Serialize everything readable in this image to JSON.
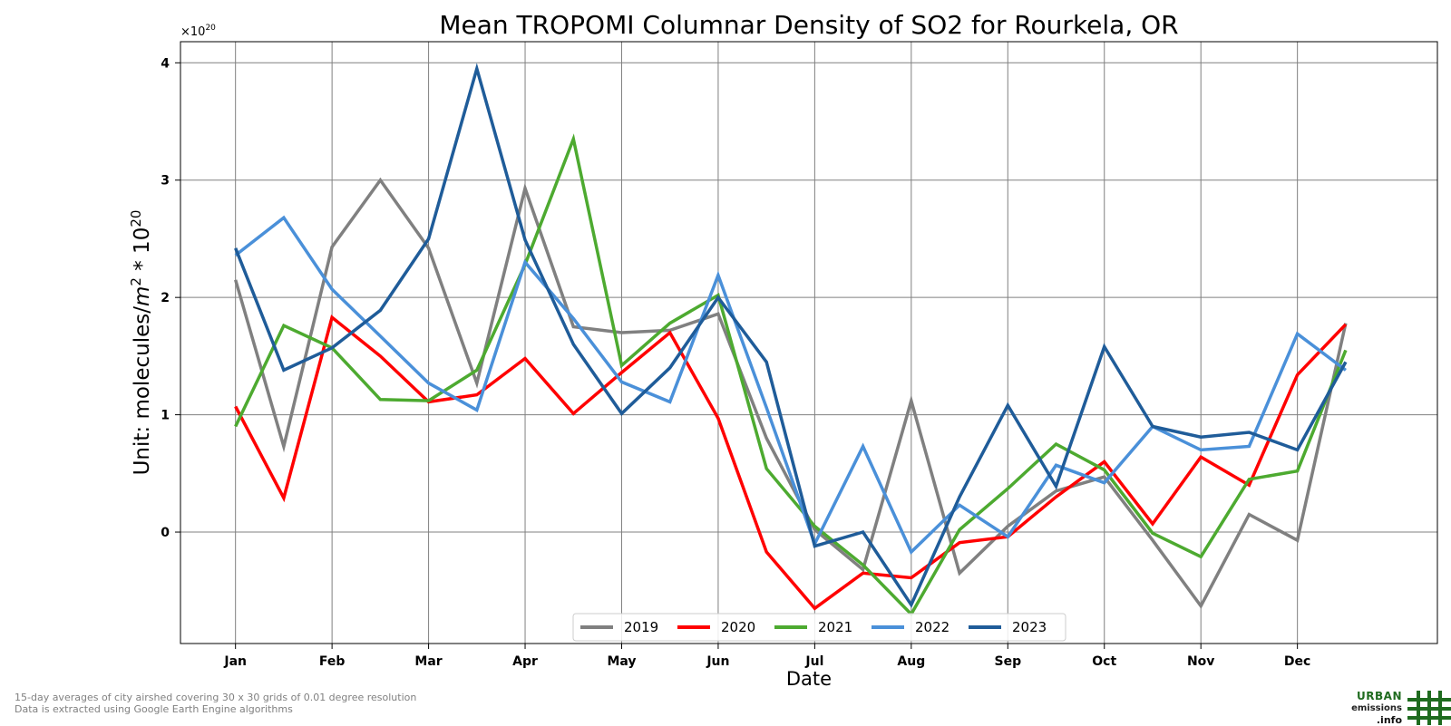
{
  "chart_data": {
    "type": "line",
    "title": "Mean TROPOMI Columnar Density of SO2 for Rourkela, OR",
    "xlabel": "Date",
    "ylabel_prefix": "Unit: molecules/",
    "ylabel_m": "m",
    "ylabel_exp2": "2",
    "ylabel_mid": " * 10",
    "ylabel_exp20": "20",
    "offset_base": "×10",
    "offset_exp": "20",
    "x_tick_labels": [
      "Jan",
      "Feb",
      "Mar",
      "Apr",
      "May",
      "Jun",
      "Jul",
      "Aug",
      "Sep",
      "Oct",
      "Nov",
      "Dec"
    ],
    "y_tick_values": [
      0,
      1,
      2,
      3,
      4
    ],
    "y_tick_labels": [
      "0",
      "1",
      "2",
      "3",
      "4"
    ],
    "xlim": [
      -0.57,
      12.45
    ],
    "ylim": [
      -0.95,
      4.18
    ],
    "grid": true,
    "legend_position": "bottom-center",
    "x": [
      0,
      0.5,
      1,
      1.5,
      2,
      2.5,
      3,
      3.5,
      4,
      4.5,
      5,
      5.5,
      6,
      6.5,
      7,
      7.5,
      8,
      8.5,
      9,
      9.5,
      10,
      10.5,
      11,
      11.5
    ],
    "series": [
      {
        "name": "2019",
        "color": "#808080",
        "values": [
          2.15,
          0.73,
          2.43,
          3.0,
          2.42,
          1.27,
          2.93,
          1.75,
          1.7,
          1.72,
          1.86,
          0.8,
          0.02,
          -0.32,
          1.12,
          -0.35,
          0.05,
          0.35,
          0.47,
          -0.07,
          -0.63,
          0.15,
          -0.07,
          1.78
        ]
      },
      {
        "name": "2020",
        "color": "#ff0000",
        "values": [
          1.07,
          0.29,
          1.83,
          1.5,
          1.11,
          1.17,
          1.48,
          1.01,
          1.36,
          1.7,
          0.97,
          -0.17,
          -0.65,
          -0.35,
          -0.39,
          -0.09,
          -0.04,
          0.3,
          0.6,
          0.07,
          0.64,
          0.4,
          1.34,
          1.77
        ]
      },
      {
        "name": "2021",
        "color": "#4daa30",
        "values": [
          0.9,
          1.76,
          1.57,
          1.13,
          1.12,
          1.38,
          2.28,
          3.35,
          1.42,
          1.78,
          2.02,
          0.54,
          0.05,
          -0.28,
          -0.7,
          0.02,
          0.37,
          0.75,
          0.53,
          -0.01,
          -0.21,
          0.45,
          0.52,
          1.55
        ]
      },
      {
        "name": "2022",
        "color": "#4a90d9",
        "values": [
          2.36,
          2.68,
          2.07,
          1.67,
          1.27,
          1.04,
          2.3,
          1.82,
          1.28,
          1.11,
          2.19,
          1.06,
          -0.1,
          0.73,
          -0.17,
          0.23,
          -0.04,
          0.57,
          0.42,
          0.9,
          0.7,
          0.73,
          1.69,
          1.38
        ]
      },
      {
        "name": "2023",
        "color": "#1f5c99",
        "values": [
          2.42,
          1.38,
          1.57,
          1.89,
          2.5,
          3.95,
          2.49,
          1.6,
          1.01,
          1.4,
          2.0,
          1.45,
          -0.12,
          0.0,
          -0.62,
          0.3,
          1.08,
          0.39,
          1.58,
          0.9,
          0.81,
          0.85,
          0.7,
          1.45
        ]
      }
    ]
  },
  "footnotes": {
    "line1": "15-day averages of city airshed covering 30 x 30 grids of 0.01 degree resolution",
    "line2": "Data is extracted using Google Earth Engine algorithms"
  },
  "logo": {
    "line1": "URBAN",
    "line2": "emissions",
    "line3": ".info",
    "color": "#1f6b1f"
  }
}
